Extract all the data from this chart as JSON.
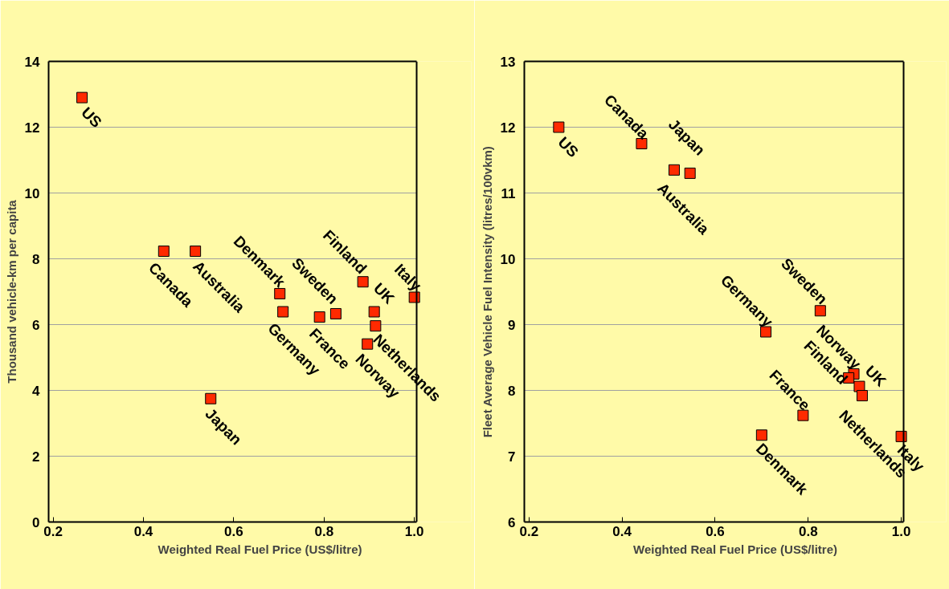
{
  "chart_data": [
    {
      "type": "scatter",
      "xlabel": "Weighted Real Fuel Price (US$/litre)",
      "ylabel": "Thousand vehicle-km per capita",
      "xlim": [
        0.19,
        1.005
      ],
      "xticks": [
        {
          "value": 0.2,
          "label": "0.2"
        },
        {
          "value": 0.4,
          "label": "0.4"
        },
        {
          "value": 0.6,
          "label": "0.6"
        },
        {
          "value": 0.8,
          "label": "0.8"
        },
        {
          "value": 1.0,
          "label": "1.0"
        }
      ],
      "ylim": [
        0,
        14
      ],
      "yticks": [
        0,
        2,
        4,
        6,
        8,
        10,
        12,
        14
      ],
      "grid": "y",
      "marker": "square",
      "series": [
        {
          "color": "#ff2a00",
          "x": [
            0.264,
            0.445,
            0.515,
            0.549,
            0.702,
            0.709,
            0.79,
            0.826,
            0.886,
            0.911,
            0.914,
            0.896,
            1.0
          ],
          "values": [
            12.9,
            8.23,
            8.23,
            3.75,
            6.94,
            6.39,
            6.23,
            6.33,
            7.3,
            6.39,
            5.96,
            5.41,
            6.83
          ]
        }
      ],
      "annotations": [
        {
          "text": "US",
          "x": 0.264,
          "y": 12.9
        },
        {
          "text": "Canada",
          "x": 0.445,
          "y": 8.23
        },
        {
          "text": "Australia",
          "x": 0.515,
          "y": 8.23
        },
        {
          "text": "Japan",
          "x": 0.549,
          "y": 3.75
        },
        {
          "text": "Denmark",
          "x": 0.702,
          "y": 6.94
        },
        {
          "text": "Germany",
          "x": 0.709,
          "y": 6.39
        },
        {
          "text": "France",
          "x": 0.79,
          "y": 6.23
        },
        {
          "text": "Sweden",
          "x": 0.826,
          "y": 6.33
        },
        {
          "text": "Finland",
          "x": 0.886,
          "y": 7.3
        },
        {
          "text": "UK",
          "x": 0.911,
          "y": 6.39
        },
        {
          "text": "Netherlands",
          "x": 0.914,
          "y": 5.96
        },
        {
          "text": "Norway",
          "x": 0.896,
          "y": 5.41
        },
        {
          "text": "Italy",
          "x": 1.0,
          "y": 6.83
        }
      ]
    },
    {
      "type": "scatter",
      "xlabel": "Weighted Real Fuel Price (US$/litre)",
      "ylabel": "Fleet Average Vehicle Fuel Intensity (litres/100vkm)",
      "xlim": [
        0.19,
        1.005
      ],
      "xticks": [
        {
          "value": 0.2,
          "label": "0.2"
        },
        {
          "value": 0.4,
          "label": "0.4"
        },
        {
          "value": 0.6,
          "label": "0.6"
        },
        {
          "value": 0.8,
          "label": "0.8"
        },
        {
          "value": 1.0,
          "label": "1.0"
        }
      ],
      "ylim": [
        6,
        13
      ],
      "yticks": [
        6,
        7,
        8,
        9,
        10,
        11,
        12,
        13
      ],
      "grid": "y",
      "marker": "square",
      "series": [
        {
          "color": "#ff2a00",
          "x": [
            0.264,
            0.442,
            0.546,
            0.512,
            0.709,
            0.826,
            0.898,
            0.887,
            0.91,
            0.916,
            0.789,
            0.7,
            1.0
          ],
          "values": [
            12.0,
            11.75,
            11.3,
            11.35,
            8.89,
            9.21,
            8.25,
            8.19,
            8.06,
            7.92,
            7.62,
            7.32,
            7.3
          ]
        }
      ],
      "annotations": [
        {
          "text": "US",
          "x": 0.264,
          "y": 12.0
        },
        {
          "text": "Canada",
          "x": 0.442,
          "y": 11.75
        },
        {
          "text": "Japan",
          "x": 0.546,
          "y": 11.3
        },
        {
          "text": "Australia",
          "x": 0.512,
          "y": 11.35
        },
        {
          "text": "Germany",
          "x": 0.709,
          "y": 8.89
        },
        {
          "text": "Sweden",
          "x": 0.826,
          "y": 9.21
        },
        {
          "text": "Norway",
          "x": 0.898,
          "y": 8.25
        },
        {
          "text": "Finland",
          "x": 0.887,
          "y": 8.19
        },
        {
          "text": "UK",
          "x": 0.91,
          "y": 8.06
        },
        {
          "text": "Netherlands",
          "x": 0.916,
          "y": 7.92
        },
        {
          "text": "France",
          "x": 0.789,
          "y": 7.62
        },
        {
          "text": "Denmark",
          "x": 0.7,
          "y": 7.32
        },
        {
          "text": "Italy",
          "x": 1.0,
          "y": 7.3
        }
      ]
    }
  ]
}
